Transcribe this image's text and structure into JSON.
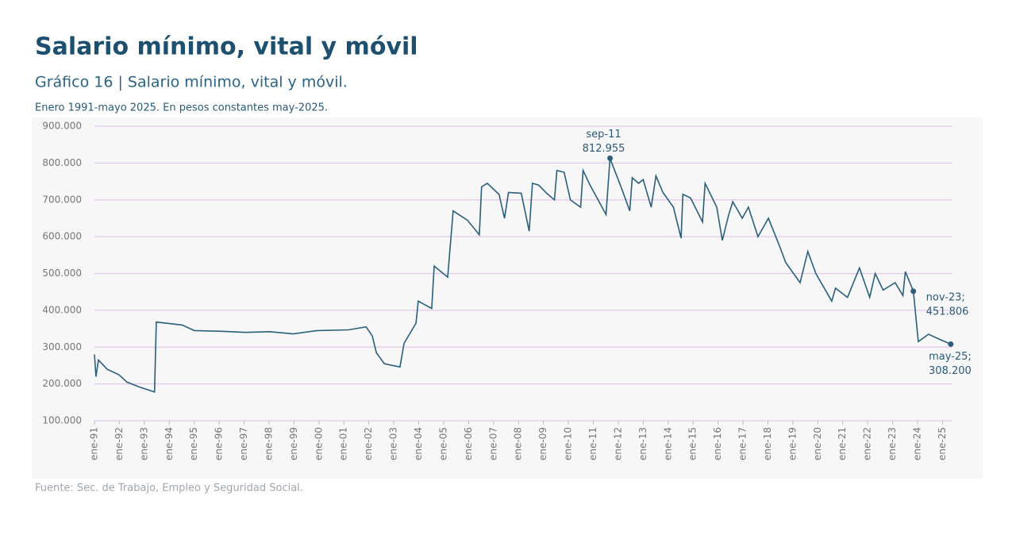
{
  "chart_data": {
    "type": "line",
    "title": "Salario mínimo, vital y móvil",
    "subtitle": "Gráfico 16 | Salario mínimo, vital y móvil.",
    "note": "Enero 1991-mayo 2025. En pesos constantes may-2025.",
    "source": "Fuente: Sec. de Trabajo, Empleo y Seguridad Social.",
    "color": "#2b5f7a",
    "grid": true,
    "x": [
      1991.0,
      1991.06,
      1991.16,
      1991.51,
      1991.98,
      1992.3,
      1992.78,
      1993.41,
      1993.48,
      1994.52,
      1995.0,
      1996.11,
      1997.06,
      1998.02,
      1998.97,
      1999.92,
      2001.19,
      2001.89,
      2002.14,
      2002.3,
      2002.62,
      2003.25,
      2003.41,
      2003.89,
      2003.98,
      2004.52,
      2004.62,
      2005.16,
      2005.38,
      2005.95,
      2006.43,
      2006.52,
      2006.75,
      2007.22,
      2007.44,
      2007.6,
      2008.11,
      2008.43,
      2008.56,
      2008.81,
      2009.13,
      2009.44,
      2009.54,
      2009.83,
      2010.08,
      2010.49,
      2010.59,
      2010.87,
      2011.19,
      2011.51,
      2011.67,
      2012.14,
      2012.46,
      2012.56,
      2012.81,
      2013.0,
      2013.32,
      2013.51,
      2013.79,
      2014.21,
      2014.52,
      2014.59,
      2014.9,
      2015.38,
      2015.48,
      2015.95,
      2016.17,
      2016.43,
      2016.59,
      2016.97,
      2017.22,
      2017.6,
      2018.02,
      2018.49,
      2018.71,
      2019.29,
      2019.6,
      2019.92,
      2020.56,
      2020.71,
      2021.19,
      2021.67,
      2022.08,
      2022.3,
      2022.62,
      2023.1,
      2023.41,
      2023.51,
      2023.83,
      2024.03,
      2024.44,
      2024.92,
      2025.33
    ],
    "values": [
      280000,
      220000,
      265000,
      240000,
      225000,
      205000,
      192000,
      178000,
      368000,
      360000,
      345000,
      343000,
      340000,
      342000,
      336000,
      345000,
      347000,
      355000,
      330000,
      285000,
      255000,
      246000,
      310000,
      365000,
      425000,
      405000,
      520000,
      490000,
      670000,
      645000,
      605000,
      735000,
      745000,
      715000,
      650000,
      720000,
      718000,
      615000,
      745000,
      740000,
      718000,
      700000,
      780000,
      775000,
      700000,
      680000,
      780000,
      740000,
      700000,
      660000,
      812955,
      730000,
      670000,
      760000,
      745000,
      755000,
      680000,
      765000,
      720000,
      680000,
      596000,
      715000,
      705000,
      640000,
      745000,
      680000,
      590000,
      660000,
      695000,
      650000,
      680000,
      600000,
      650000,
      570000,
      530000,
      475000,
      560000,
      500000,
      425000,
      460000,
      435000,
      515000,
      435000,
      500000,
      455000,
      475000,
      440000,
      505000,
      451806,
      315000,
      335000,
      320000,
      308200
    ],
    "xlim": [
      1991,
      2025.4
    ],
    "ylim": [
      100000,
      900000
    ],
    "yticks": [
      {
        "value": 100000,
        "label": "100.000"
      },
      {
        "value": 200000,
        "label": "200.000"
      },
      {
        "value": 300000,
        "label": "300.000"
      },
      {
        "value": 400000,
        "label": "400.000"
      },
      {
        "value": 500000,
        "label": "500.000"
      },
      {
        "value": 600000,
        "label": "600.000"
      },
      {
        "value": 700000,
        "label": "700.000"
      },
      {
        "value": 800000,
        "label": "800.000"
      },
      {
        "value": 900000,
        "label": "900.000"
      }
    ],
    "xticks": [
      {
        "value": 1991,
        "label": "ene-91"
      },
      {
        "value": 1992,
        "label": "ene-92"
      },
      {
        "value": 1993,
        "label": "ene-93"
      },
      {
        "value": 1994,
        "label": "ene-94"
      },
      {
        "value": 1995,
        "label": "ene-95"
      },
      {
        "value": 1996,
        "label": "ene-96"
      },
      {
        "value": 1997,
        "label": "ene-97"
      },
      {
        "value": 1998,
        "label": "ene-98"
      },
      {
        "value": 1999,
        "label": "ene-99"
      },
      {
        "value": 2000,
        "label": "ene-00"
      },
      {
        "value": 2001,
        "label": "ene-01"
      },
      {
        "value": 2002,
        "label": "ene-02"
      },
      {
        "value": 2003,
        "label": "ene-03"
      },
      {
        "value": 2004,
        "label": "ene-04"
      },
      {
        "value": 2005,
        "label": "ene-05"
      },
      {
        "value": 2006,
        "label": "ene-06"
      },
      {
        "value": 2007,
        "label": "ene-07"
      },
      {
        "value": 2008,
        "label": "ene-08"
      },
      {
        "value": 2009,
        "label": "ene-09"
      },
      {
        "value": 2010,
        "label": "ene-10"
      },
      {
        "value": 2011,
        "label": "ene-11"
      },
      {
        "value": 2012,
        "label": "ene-12"
      },
      {
        "value": 2013,
        "label": "ene-13"
      },
      {
        "value": 2014,
        "label": "ene-14"
      },
      {
        "value": 2015,
        "label": "ene-15"
      },
      {
        "value": 2016,
        "label": "ene-16"
      },
      {
        "value": 2017,
        "label": "ene-17"
      },
      {
        "value": 2018,
        "label": "ene-18"
      },
      {
        "value": 2019,
        "label": "ene-19"
      },
      {
        "value": 2020,
        "label": "ene-20"
      },
      {
        "value": 2021,
        "label": "ene-21"
      },
      {
        "value": 2022,
        "label": "ene-22"
      },
      {
        "value": 2023,
        "label": "ene-23"
      },
      {
        "value": 2024,
        "label": "ene-24"
      },
      {
        "value": 2025,
        "label": "ene-25"
      }
    ],
    "annotations": [
      {
        "x": 2011.67,
        "y": 812955,
        "text": "sep-11",
        "value_label": "812.955"
      },
      {
        "x": 2023.83,
        "y": 451806,
        "text": "nov-23;",
        "value_label": "451.806"
      },
      {
        "x": 2025.33,
        "y": 308200,
        "text": "may-25;",
        "value_label": "308.200"
      }
    ]
  }
}
